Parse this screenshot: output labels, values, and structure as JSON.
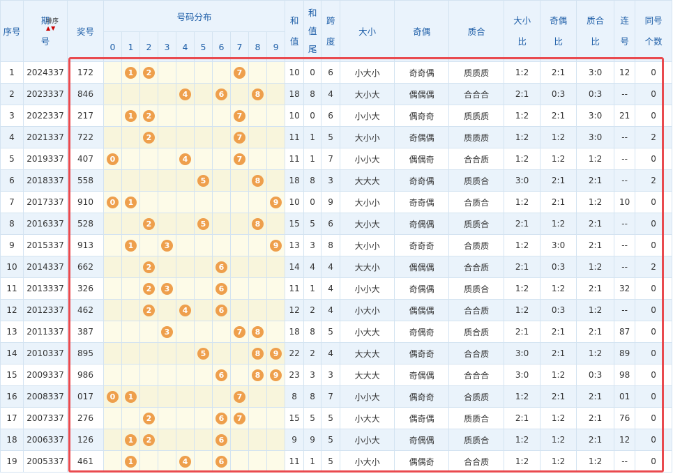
{
  "table": {
    "header": {
      "index": "序号",
      "issue": "期号",
      "sort": "排序",
      "number": "奖号",
      "distribution": "号码分布",
      "digits": [
        0,
        1,
        2,
        3,
        4,
        5,
        6,
        7,
        8,
        9
      ],
      "sum": "和值",
      "sum_tail": "和值尾",
      "span": "跨度",
      "size": "大小",
      "parity": "奇偶",
      "prime": "质合",
      "size_ratio": "大小比",
      "parity_ratio": "奇偶比",
      "prime_ratio": "质合比",
      "consecutive": "连号",
      "same_count": "同号个数"
    },
    "rows": [
      [
        1,
        "2024337",
        "172",
        [
          1,
          2,
          7
        ],
        10,
        0,
        6,
        "小大小",
        "奇奇偶",
        "质质质",
        "1:2",
        "2:1",
        "3:0",
        "12",
        0
      ],
      [
        2,
        "2023337",
        "846",
        [
          4,
          6,
          8
        ],
        18,
        8,
        4,
        "大小大",
        "偶偶偶",
        "合合合",
        "2:1",
        "0:3",
        "0:3",
        "--",
        0
      ],
      [
        3,
        "2022337",
        "217",
        [
          1,
          2,
          7
        ],
        10,
        0,
        6,
        "小小大",
        "偶奇奇",
        "质质质",
        "1:2",
        "2:1",
        "3:0",
        "21",
        0
      ],
      [
        4,
        "2021337",
        "722",
        [
          2,
          7
        ],
        11,
        1,
        5,
        "大小小",
        "奇偶偶",
        "质质质",
        "1:2",
        "1:2",
        "3:0",
        "--",
        2
      ],
      [
        5,
        "2019337",
        "407",
        [
          0,
          4,
          7
        ],
        11,
        1,
        7,
        "小小大",
        "偶偶奇",
        "合合质",
        "1:2",
        "1:2",
        "1:2",
        "--",
        0
      ],
      [
        6,
        "2018337",
        "558",
        [
          5,
          8
        ],
        18,
        8,
        3,
        "大大大",
        "奇奇偶",
        "质质合",
        "3:0",
        "2:1",
        "2:1",
        "--",
        2
      ],
      [
        7,
        "2017337",
        "910",
        [
          0,
          1,
          9
        ],
        10,
        0,
        9,
        "大小小",
        "奇奇偶",
        "合质合",
        "1:2",
        "2:1",
        "1:2",
        "10",
        0
      ],
      [
        8,
        "2016337",
        "528",
        [
          2,
          5,
          8
        ],
        15,
        5,
        6,
        "大小大",
        "奇偶偶",
        "质质合",
        "2:1",
        "1:2",
        "2:1",
        "--",
        0
      ],
      [
        9,
        "2015337",
        "913",
        [
          1,
          3,
          9
        ],
        13,
        3,
        8,
        "大小小",
        "奇奇奇",
        "合质质",
        "1:2",
        "3:0",
        "2:1",
        "--",
        0
      ],
      [
        10,
        "2014337",
        "662",
        [
          2,
          6
        ],
        14,
        4,
        4,
        "大大小",
        "偶偶偶",
        "合合质",
        "2:1",
        "0:3",
        "1:2",
        "--",
        2
      ],
      [
        11,
        "2013337",
        "326",
        [
          2,
          3,
          6
        ],
        11,
        1,
        4,
        "小小大",
        "奇偶偶",
        "质质合",
        "1:2",
        "1:2",
        "2:1",
        "32",
        0
      ],
      [
        12,
        "2012337",
        "462",
        [
          2,
          4,
          6
        ],
        12,
        2,
        4,
        "小大小",
        "偶偶偶",
        "合合质",
        "1:2",
        "0:3",
        "1:2",
        "--",
        0
      ],
      [
        13,
        "2011337",
        "387",
        [
          3,
          7,
          8
        ],
        18,
        8,
        5,
        "小大大",
        "奇偶奇",
        "质合质",
        "2:1",
        "2:1",
        "2:1",
        "87",
        0
      ],
      [
        14,
        "2010337",
        "895",
        [
          5,
          8,
          9
        ],
        22,
        2,
        4,
        "大大大",
        "偶奇奇",
        "合合质",
        "3:0",
        "2:1",
        "1:2",
        "89",
        0
      ],
      [
        15,
        "2009337",
        "986",
        [
          6,
          8,
          9
        ],
        23,
        3,
        3,
        "大大大",
        "奇偶偶",
        "合合合",
        "3:0",
        "1:2",
        "0:3",
        "98",
        0
      ],
      [
        16,
        "2008337",
        "017",
        [
          0,
          1,
          7
        ],
        8,
        8,
        7,
        "小小大",
        "偶奇奇",
        "合质质",
        "1:2",
        "2:1",
        "2:1",
        "01",
        0
      ],
      [
        17,
        "2007337",
        "276",
        [
          2,
          6,
          7
        ],
        15,
        5,
        5,
        "小大大",
        "偶奇偶",
        "质质合",
        "2:1",
        "1:2",
        "2:1",
        "76",
        0
      ],
      [
        18,
        "2006337",
        "126",
        [
          1,
          2,
          6
        ],
        9,
        9,
        5,
        "小小大",
        "奇偶偶",
        "质质合",
        "1:2",
        "1:2",
        "2:1",
        "12",
        0
      ],
      [
        19,
        "2005337",
        "461",
        [
          1,
          4,
          6
        ],
        11,
        1,
        5,
        "小大小",
        "偶偶奇",
        "合合质",
        "1:2",
        "1:2",
        "1:2",
        "--",
        0
      ]
    ]
  }
}
